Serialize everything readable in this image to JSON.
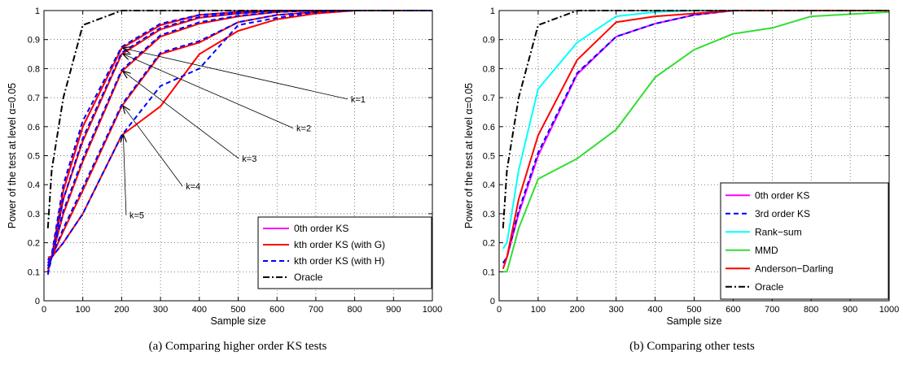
{
  "chart_data": [
    {
      "type": "line",
      "caption": "(a)  Comparing higher order KS tests",
      "xlabel": "Sample size",
      "ylabel": "Power of the test at level α=0.05",
      "xlim": [
        0,
        1000
      ],
      "ylim": [
        0,
        1
      ],
      "xticks": [
        0,
        100,
        200,
        300,
        400,
        500,
        600,
        700,
        800,
        900,
        1000
      ],
      "yticks": [
        0,
        0.1,
        0.2,
        0.3,
        0.4,
        0.5,
        0.6,
        0.7,
        0.8,
        0.9,
        1
      ],
      "grid": true,
      "legend_position": "bottom-right",
      "legend": [
        {
          "label": "0th order KS",
          "color": "#ff00ff",
          "dash": "solid"
        },
        {
          "label": "kth order KS (with G)",
          "color": "#ff0000",
          "dash": "solid"
        },
        {
          "label": "kth order KS (with H)",
          "color": "#0000ff",
          "dash": "dashed"
        },
        {
          "label": "Oracle",
          "color": "#000000",
          "dash": "dashdot"
        }
      ],
      "series": [
        {
          "color": "#ff00ff",
          "dash": "solid",
          "x": [
            10,
            20,
            50,
            100,
            200,
            300,
            400,
            500,
            600,
            700,
            800,
            1000
          ],
          "y": [
            0.13,
            0.15,
            0.38,
            0.6,
            0.87,
            0.95,
            0.985,
            0.995,
            1,
            1,
            1,
            1
          ]
        },
        {
          "color": "#ff0000",
          "dash": "solid",
          "x": [
            10,
            20,
            50,
            100,
            200,
            300,
            400,
            500,
            600,
            700,
            800,
            1000
          ],
          "y": [
            0.13,
            0.15,
            0.38,
            0.6,
            0.87,
            0.95,
            0.985,
            0.995,
            1,
            1,
            1,
            1
          ]
        },
        {
          "color": "#0000ff",
          "dash": "dashed",
          "x": [
            10,
            20,
            50,
            100,
            200,
            300,
            400,
            500,
            600,
            700,
            800,
            1000
          ],
          "y": [
            0.14,
            0.16,
            0.4,
            0.62,
            0.875,
            0.955,
            0.985,
            0.995,
            1,
            1,
            1,
            1
          ]
        },
        {
          "color": "#ff0000",
          "dash": "solid",
          "x": [
            10,
            20,
            50,
            100,
            200,
            300,
            400,
            500,
            600,
            700,
            800,
            1000
          ],
          "y": [
            0.12,
            0.15,
            0.35,
            0.55,
            0.85,
            0.935,
            0.975,
            0.99,
            1,
            1,
            1,
            1
          ]
        },
        {
          "color": "#0000ff",
          "dash": "dashed",
          "x": [
            10,
            20,
            50,
            100,
            200,
            300,
            400,
            500,
            600,
            700,
            800,
            1000
          ],
          "y": [
            0.12,
            0.15,
            0.35,
            0.56,
            0.855,
            0.94,
            0.978,
            0.99,
            1,
            1,
            1,
            1
          ]
        },
        {
          "color": "#ff0000",
          "dash": "solid",
          "x": [
            10,
            20,
            50,
            100,
            200,
            300,
            400,
            500,
            600,
            700,
            800,
            1000
          ],
          "y": [
            0.1,
            0.15,
            0.3,
            0.48,
            0.79,
            0.91,
            0.955,
            0.98,
            0.995,
            1,
            1,
            1
          ]
        },
        {
          "color": "#0000ff",
          "dash": "dashed",
          "x": [
            10,
            20,
            50,
            100,
            200,
            300,
            400,
            500,
            600,
            700,
            800,
            1000
          ],
          "y": [
            0.11,
            0.15,
            0.31,
            0.49,
            0.795,
            0.915,
            0.96,
            0.982,
            0.995,
            1,
            1,
            1
          ]
        },
        {
          "color": "#ff0000",
          "dash": "solid",
          "x": [
            10,
            20,
            50,
            100,
            200,
            300,
            400,
            500,
            600,
            700,
            800,
            1000
          ],
          "y": [
            0.13,
            0.15,
            0.24,
            0.38,
            0.67,
            0.85,
            0.89,
            0.96,
            0.985,
            0.995,
            1,
            1
          ]
        },
        {
          "color": "#0000ff",
          "dash": "dashed",
          "x": [
            10,
            20,
            50,
            100,
            200,
            300,
            400,
            500,
            600,
            700,
            800,
            1000
          ],
          "y": [
            0.13,
            0.15,
            0.25,
            0.39,
            0.675,
            0.855,
            0.895,
            0.96,
            0.985,
            0.995,
            1,
            1
          ]
        },
        {
          "color": "#ff0000",
          "dash": "solid",
          "x": [
            10,
            20,
            50,
            100,
            200,
            300,
            400,
            500,
            600,
            700,
            800,
            1000
          ],
          "y": [
            0.15,
            0.15,
            0.2,
            0.3,
            0.57,
            0.67,
            0.85,
            0.93,
            0.97,
            0.99,
            1,
            1
          ]
        },
        {
          "color": "#0000ff",
          "dash": "dashed",
          "x": [
            10,
            20,
            50,
            100,
            200,
            300,
            400,
            500,
            600,
            700,
            800,
            1000
          ],
          "y": [
            0.09,
            0.15,
            0.2,
            0.3,
            0.57,
            0.74,
            0.8,
            0.95,
            0.975,
            0.995,
            1,
            1
          ]
        },
        {
          "color": "#000000",
          "dash": "dashdot",
          "x": [
            10,
            20,
            50,
            100,
            200,
            300,
            400,
            500,
            600,
            700,
            800,
            1000
          ],
          "y": [
            0.25,
            0.45,
            0.7,
            0.95,
            1,
            1,
            1,
            1,
            1,
            1,
            1,
            1
          ]
        }
      ],
      "annotations": [
        {
          "text": "k=1",
          "label_x": 790,
          "label_y": 0.695,
          "arrow_to_x": 200,
          "arrow_to_y": 0.87
        },
        {
          "text": "k=2",
          "label_x": 650,
          "label_y": 0.595,
          "arrow_to_x": 200,
          "arrow_to_y": 0.85
        },
        {
          "text": "k=3",
          "label_x": 510,
          "label_y": 0.49,
          "arrow_to_x": 200,
          "arrow_to_y": 0.79
        },
        {
          "text": "k=4",
          "label_x": 365,
          "label_y": 0.395,
          "arrow_to_x": 200,
          "arrow_to_y": 0.67
        },
        {
          "text": "k=5",
          "label_x": 220,
          "label_y": 0.295,
          "arrow_to_x": 200,
          "arrow_to_y": 0.57
        }
      ]
    },
    {
      "type": "line",
      "caption": "(b)  Comparing other tests",
      "xlabel": "Sample size",
      "ylabel": "Power of the test at level α=0.05",
      "xlim": [
        0,
        1000
      ],
      "ylim": [
        0,
        1
      ],
      "xticks": [
        0,
        100,
        200,
        300,
        400,
        500,
        600,
        700,
        800,
        900,
        1000
      ],
      "yticks": [
        0,
        0.1,
        0.2,
        0.3,
        0.4,
        0.5,
        0.6,
        0.7,
        0.8,
        0.9,
        1
      ],
      "grid": true,
      "legend_position": "bottom-right",
      "legend": [
        {
          "label": "0th order KS",
          "color": "#ff00ff",
          "dash": "solid"
        },
        {
          "label": "3rd order KS",
          "color": "#0000ff",
          "dash": "dashed"
        },
        {
          "label": "Rank−sum",
          "color": "#00ffff",
          "dash": "solid"
        },
        {
          "label": "MMD",
          "color": "#33dd33",
          "dash": "solid"
        },
        {
          "label": "Anderson−Darling",
          "color": "#ff0000",
          "dash": "solid"
        },
        {
          "label": "Oracle",
          "color": "#000000",
          "dash": "dashdot"
        }
      ],
      "series": [
        {
          "name": "0th order KS",
          "color": "#ff00ff",
          "dash": "solid",
          "x": [
            10,
            20,
            50,
            100,
            200,
            300,
            400,
            500,
            600,
            700,
            800,
            1000
          ],
          "y": [
            0.13,
            0.15,
            0.3,
            0.5,
            0.78,
            0.91,
            0.955,
            0.985,
            1,
            1,
            1,
            1
          ]
        },
        {
          "name": "3rd order KS",
          "color": "#0000ff",
          "dash": "dashed",
          "x": [
            10,
            20,
            50,
            100,
            200,
            300,
            400,
            500,
            600,
            700,
            800,
            1000
          ],
          "y": [
            0.13,
            0.15,
            0.31,
            0.51,
            0.785,
            0.91,
            0.955,
            0.985,
            1,
            1,
            1,
            1
          ]
        },
        {
          "name": "Rank−sum",
          "color": "#00ffff",
          "dash": "solid",
          "x": [
            10,
            20,
            50,
            100,
            200,
            300,
            400,
            500,
            600,
            700,
            800,
            1000
          ],
          "y": [
            0.18,
            0.2,
            0.45,
            0.73,
            0.89,
            0.98,
            0.995,
            1,
            1,
            1,
            1,
            1
          ]
        },
        {
          "name": "MMD",
          "color": "#33dd33",
          "dash": "solid",
          "x": [
            10,
            20,
            50,
            100,
            200,
            300,
            400,
            500,
            600,
            700,
            800,
            1000
          ],
          "y": [
            0.1,
            0.1,
            0.25,
            0.42,
            0.49,
            0.59,
            0.77,
            0.865,
            0.92,
            0.94,
            0.98,
            0.995
          ]
        },
        {
          "name": "Anderson−Darling",
          "color": "#ff0000",
          "dash": "solid",
          "x": [
            10,
            20,
            50,
            100,
            200,
            300,
            400,
            500,
            600,
            700,
            800,
            1000
          ],
          "y": [
            0.11,
            0.15,
            0.35,
            0.57,
            0.83,
            0.96,
            0.98,
            0.99,
            1,
            1,
            1,
            1
          ]
        },
        {
          "name": "Oracle",
          "color": "#000000",
          "dash": "dashdot",
          "x": [
            10,
            20,
            50,
            100,
            200,
            300,
            400,
            500,
            600,
            700,
            800,
            1000
          ],
          "y": [
            0.25,
            0.45,
            0.7,
            0.95,
            1,
            1,
            1,
            1,
            1,
            1,
            1,
            1
          ]
        }
      ],
      "annotations": []
    }
  ]
}
